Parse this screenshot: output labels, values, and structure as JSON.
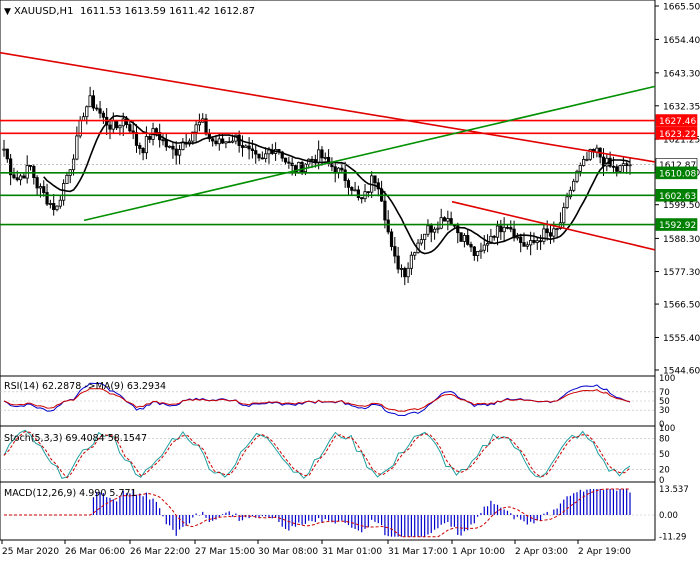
{
  "header": {
    "symbol": "XAUUSD,H1",
    "ohlc": "1611.53 1613.59 1611.42 1612.87"
  },
  "colors": {
    "background": "#ffffff",
    "grid": "#d8d8d8",
    "candle": "#000000",
    "ma_line": "#000000",
    "resistance": "#ff0000",
    "support": "#008000",
    "trend_red": "#e00000",
    "trend_green": "#009000",
    "label_red": "#ff0000",
    "label_green": "#008000",
    "label_price": "#ffffff",
    "rsi_line": "#0000cc",
    "rsi_ma": "#cc0000",
    "stoch_main": "#20a0a0",
    "stoch_signal": "#cc0000",
    "macd_hist": "#0000cc",
    "macd_signal": "#cc0000"
  },
  "price_axis": {
    "ticks": [
      "1665.50",
      "1654.40",
      "1643.30",
      "1632.35",
      "1621.25",
      "1610.30",
      "1599.50",
      "1588.30",
      "1577.30",
      "1566.50",
      "1555.40",
      "1544.60"
    ],
    "levels": [
      {
        "value": "1627.46",
        "kind": "resistance"
      },
      {
        "value": "1623.22",
        "kind": "resistance"
      },
      {
        "value": "1612.87",
        "kind": "current"
      },
      {
        "value": "1610.08",
        "kind": "support"
      },
      {
        "value": "1602.63",
        "kind": "support"
      },
      {
        "value": "1592.92",
        "kind": "support"
      }
    ]
  },
  "time_axis": [
    "25 Mar 2020",
    "26 Mar 06:00",
    "26 Mar 22:00",
    "27 Mar 15:00",
    "30 Mar 08:00",
    "31 Mar 01:00",
    "31 Mar 17:00",
    "1 Apr 10:00",
    "2 Apr 03:00",
    "2 Apr 19:00"
  ],
  "rsi": {
    "label": "RSI(14) 62.2878   ->MA(9) 63.2934",
    "ticks": [
      "100",
      "70",
      "50",
      "30",
      "0"
    ]
  },
  "stoch": {
    "label": "Stoch(5,3,3) 69.4084 58.1547",
    "ticks": [
      "100",
      "80",
      "50",
      "20",
      "0"
    ]
  },
  "macd": {
    "label": "MACD(12,26,9) 4.990 5.771",
    "ticks": [
      "13.537",
      "0.00",
      "-11.29"
    ]
  },
  "chart_data": {
    "type": "candlestick",
    "ylim": [
      1544.6,
      1665.5
    ],
    "close_path": [
      1618,
      1611,
      1608,
      1610,
      1612,
      1606,
      1603,
      1600,
      1598,
      1606,
      1612,
      1620,
      1630,
      1634,
      1632,
      1628,
      1626,
      1625,
      1628,
      1626,
      1620,
      1618,
      1622,
      1624,
      1621,
      1618,
      1617,
      1620,
      1622,
      1625,
      1627,
      1622,
      1620,
      1620,
      1621,
      1622,
      1620,
      1617,
      1615,
      1613,
      1617,
      1619,
      1617,
      1613,
      1611,
      1612,
      1614,
      1615,
      1616,
      1613,
      1612,
      1610,
      1608,
      1605,
      1600,
      1603,
      1609,
      1606,
      1594,
      1582,
      1579,
      1577,
      1584,
      1588,
      1591,
      1592,
      1594,
      1596,
      1594,
      1590,
      1588,
      1584,
      1582,
      1586,
      1590,
      1591,
      1594,
      1592,
      1588,
      1586,
      1586,
      1588,
      1590,
      1589,
      1591,
      1597,
      1605,
      1610,
      1613,
      1616,
      1617,
      1614,
      1612,
      1611,
      1612,
      1613
    ],
    "levels": [
      1627.46,
      1623.22,
      1610.08,
      1602.63,
      1592.92
    ],
    "current_price": 1612.87
  }
}
